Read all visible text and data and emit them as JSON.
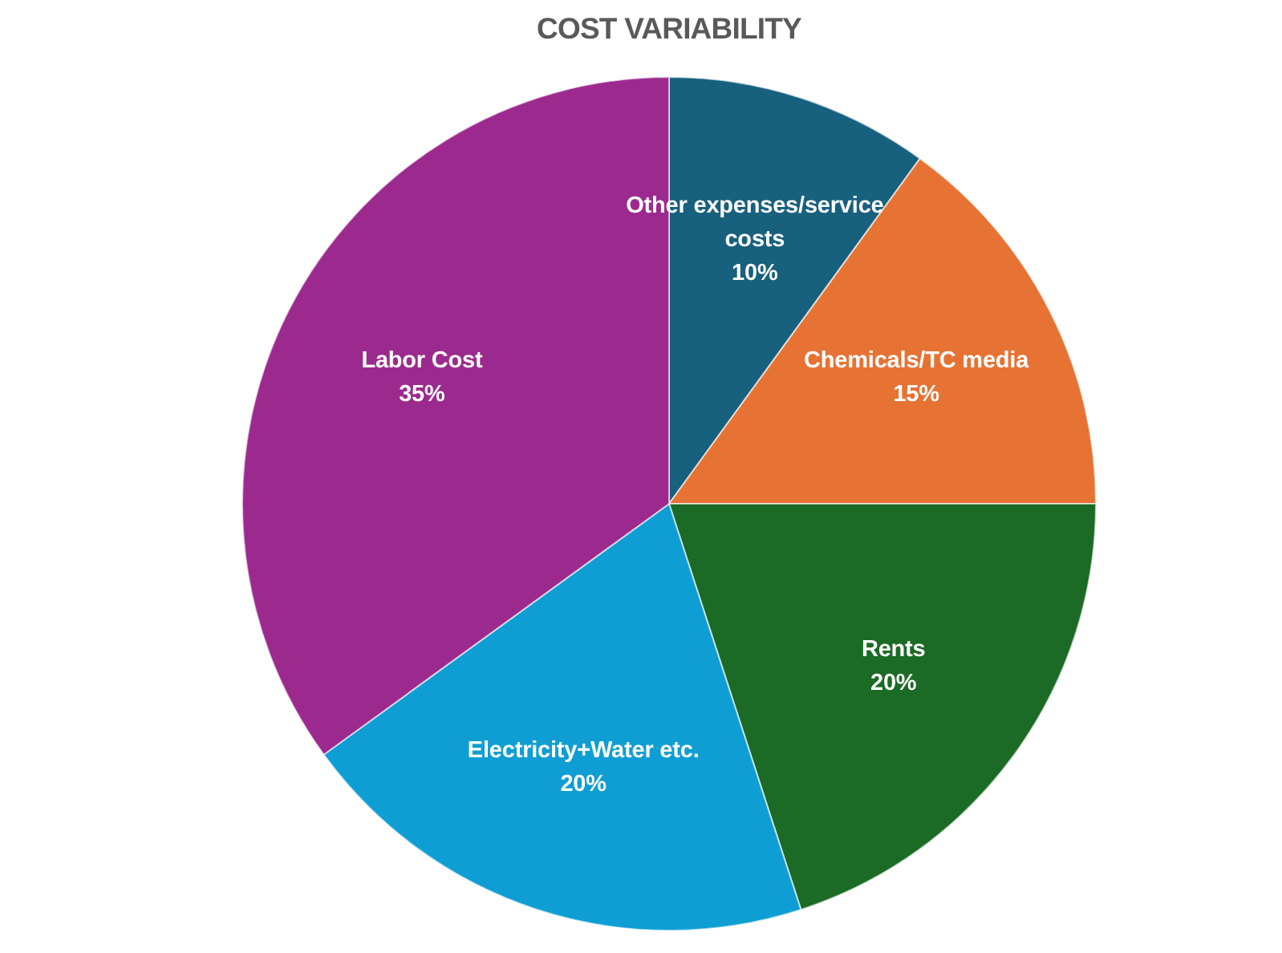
{
  "chart_data": {
    "type": "pie",
    "title": "COST VARIABILITY",
    "categories": [
      "Other expenses/service costs",
      "Chemicals/TC media",
      "Rents",
      "Electricity+Water etc.",
      "Labor Cost"
    ],
    "values": [
      10,
      15,
      20,
      20,
      35
    ],
    "colors": [
      "#17607e",
      "#e67234",
      "#1b6a25",
      "#0f9ed3",
      "#9c2a8e"
    ],
    "value_labels": [
      "10%",
      "15%",
      "20%",
      "20%",
      "35%"
    ]
  }
}
